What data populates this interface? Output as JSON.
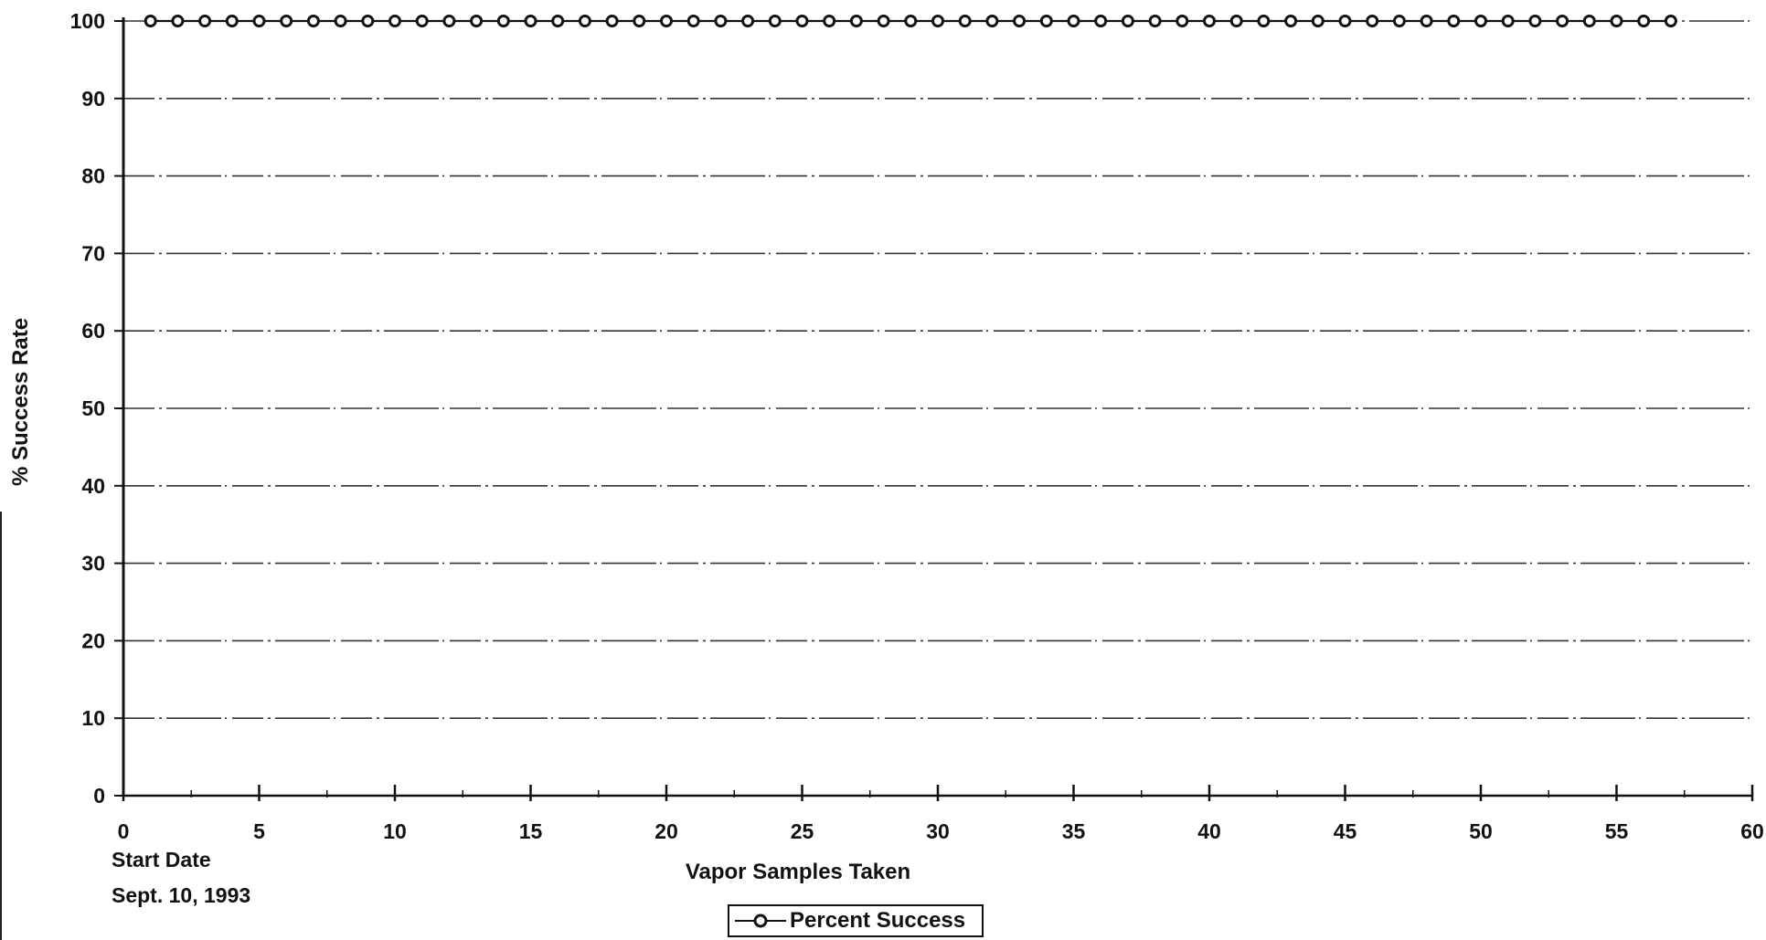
{
  "chart_data": {
    "type": "line",
    "title": "",
    "xlabel": "Vapor Samples Taken",
    "ylabel": "% Success Rate",
    "xlim": [
      0,
      60
    ],
    "ylim": [
      0,
      100
    ],
    "x_ticks": [
      "0",
      "5",
      "10",
      "15",
      "20",
      "25",
      "30",
      "35",
      "40",
      "45",
      "50",
      "55",
      "60"
    ],
    "y_ticks": [
      "0",
      "10",
      "20",
      "30",
      "40",
      "50",
      "60",
      "70",
      "80",
      "90",
      "100"
    ],
    "grid": true,
    "legend_position": "bottom-center",
    "start_note": {
      "line1": "Start Date",
      "line2": "Sept. 10, 1993"
    },
    "series": [
      {
        "name": "Percent Success",
        "color": "#111111",
        "marker": "open-circle",
        "x": [
          1,
          2,
          3,
          4,
          5,
          6,
          7,
          8,
          9,
          10,
          11,
          12,
          13,
          14,
          15,
          16,
          17,
          18,
          19,
          20,
          21,
          22,
          23,
          24,
          25,
          26,
          27,
          28,
          29,
          30,
          31,
          32,
          33,
          34,
          35,
          36,
          37,
          38,
          39,
          40,
          41,
          42,
          43,
          44,
          45,
          46,
          47,
          48,
          49,
          50,
          51,
          52,
          53,
          54,
          55,
          56,
          57
        ],
        "values": [
          100,
          100,
          100,
          100,
          100,
          100,
          100,
          100,
          100,
          100,
          100,
          100,
          100,
          100,
          100,
          100,
          100,
          100,
          100,
          100,
          100,
          100,
          100,
          100,
          100,
          100,
          100,
          100,
          100,
          100,
          100,
          100,
          100,
          100,
          100,
          100,
          100,
          100,
          100,
          100,
          100,
          100,
          100,
          100,
          100,
          100,
          100,
          100,
          100,
          100,
          100,
          100,
          100,
          100,
          100,
          100,
          100
        ]
      }
    ]
  }
}
